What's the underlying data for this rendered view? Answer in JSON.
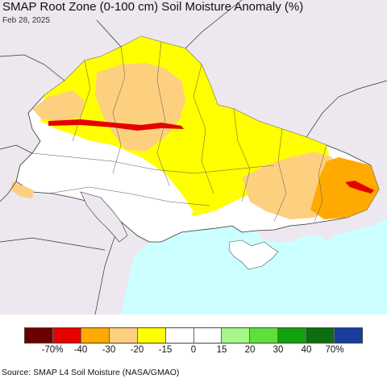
{
  "title": "SMAP Root Zone (0-100 cm) Soil Moisture Anomaly (%)",
  "date": "Feb 28, 2025",
  "source": "Source: SMAP L4 Soil Moisture (NASA/GMAO)",
  "colors": {
    "background_land": "#ede7ef",
    "sea": "#ccffff",
    "no_data": "#ffffff"
  },
  "legend": {
    "bins": [
      {
        "color": "#6b0000"
      },
      {
        "color": "#e60000"
      },
      {
        "color": "#ffaa00"
      },
      {
        "color": "#fdd080"
      },
      {
        "color": "#ffff00"
      },
      {
        "color": "#ffffff"
      },
      {
        "color": "#ffffff"
      },
      {
        "color": "#a6f68a"
      },
      {
        "color": "#5ee03c"
      },
      {
        "color": "#13a10e"
      },
      {
        "color": "#0b6e10"
      },
      {
        "color": "#1a3e9c"
      }
    ],
    "ticks": [
      "-70%",
      "-40",
      "-30",
      "-20",
      "-15",
      "0",
      "15",
      "20",
      "30",
      "40",
      "70%"
    ]
  }
}
